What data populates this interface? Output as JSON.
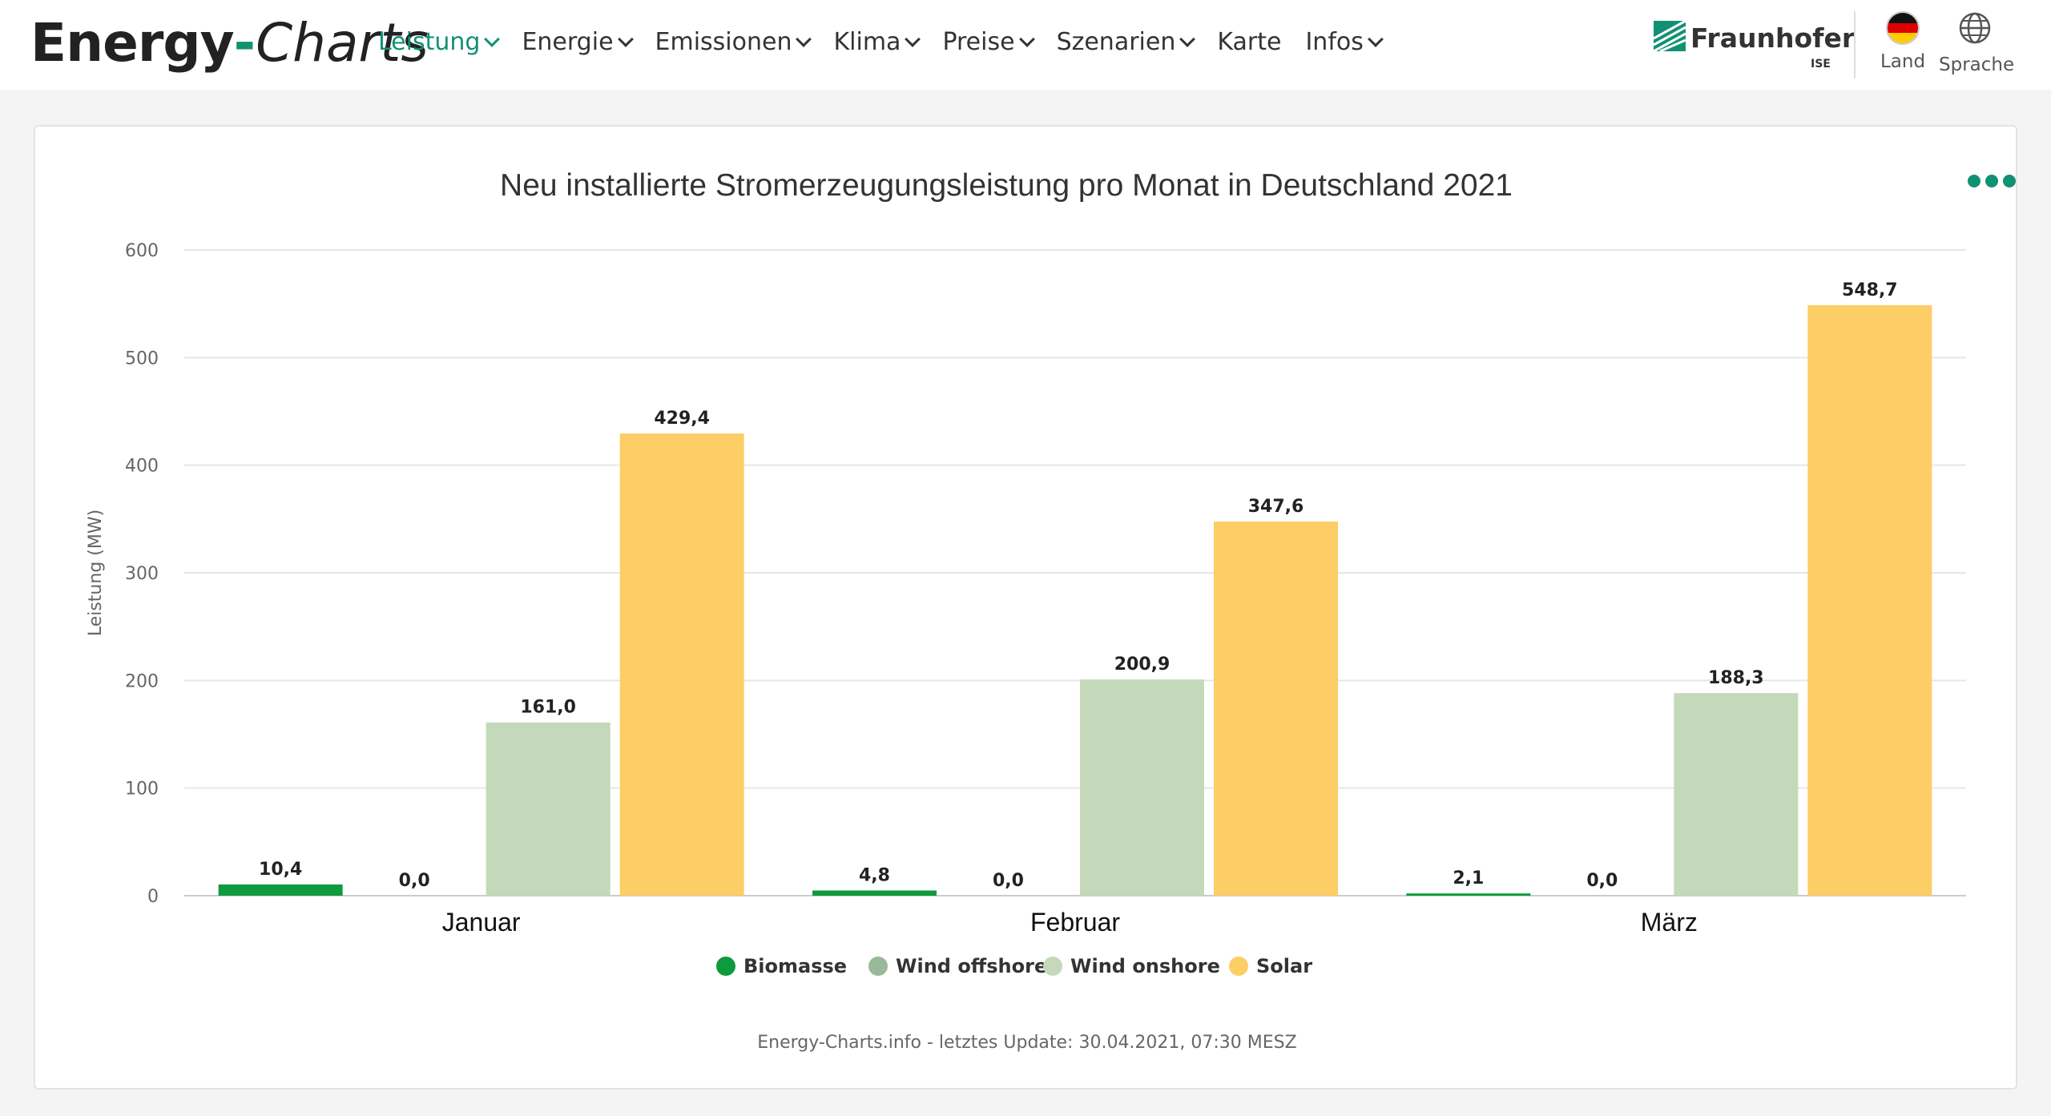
{
  "header": {
    "logo": {
      "part1": "Energy",
      "dash": "-",
      "part2": "Charts"
    },
    "nav": [
      {
        "label": "Leistung",
        "dropdown": true,
        "active": true
      },
      {
        "label": "Energie",
        "dropdown": true
      },
      {
        "label": "Emissionen",
        "dropdown": true
      },
      {
        "label": "Klima",
        "dropdown": true
      },
      {
        "label": "Preise",
        "dropdown": true
      },
      {
        "label": "Szenarien",
        "dropdown": true
      },
      {
        "label": "Karte",
        "dropdown": false
      },
      {
        "label": "Infos",
        "dropdown": true
      }
    ],
    "brand": {
      "name": "Fraunhofer",
      "sub": "ISE"
    },
    "land_label": "Land",
    "sprache_label": "Sprache",
    "accent": "#119173"
  },
  "chart_data": {
    "type": "bar",
    "title": "Neu installierte Stromerzeugungsleistung pro Monat in Deutschland 2021",
    "ylabel": "Leistung (MW)",
    "xlabel": "",
    "ylim": [
      0,
      600
    ],
    "yticks": [
      0,
      100,
      200,
      300,
      400,
      500,
      600
    ],
    "grid": true,
    "legend_position": "bottom",
    "categories": [
      "Januar",
      "Februar",
      "März"
    ],
    "series": [
      {
        "name": "Biomasse",
        "color": "#0e9a3e",
        "values": [
          10.4,
          4.8,
          2.1
        ],
        "labels": [
          "10,4",
          "4,8",
          "2,1"
        ]
      },
      {
        "name": "Wind offshore",
        "color": "#9bb899",
        "values": [
          0.0,
          0.0,
          0.0
        ],
        "labels": [
          "0,0",
          "0,0",
          "0,0"
        ]
      },
      {
        "name": "Wind onshore",
        "color": "#c3d9b9",
        "values": [
          161.0,
          200.9,
          188.3
        ],
        "labels": [
          "161,0",
          "200,9",
          "188,3"
        ]
      },
      {
        "name": "Solar",
        "color": "#fdcd66",
        "values": [
          429.4,
          347.6,
          548.7
        ],
        "labels": [
          "429,4",
          "347,6",
          "548,7"
        ]
      }
    ]
  },
  "footer": "Energy-Charts.info - letztes Update: 30.04.2021, 07:30 MESZ"
}
